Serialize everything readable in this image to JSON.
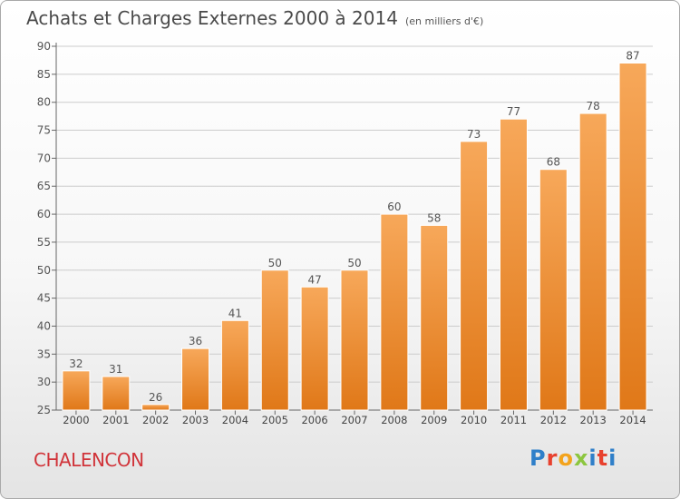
{
  "title": "Achats et Charges Externes 2000 à 2014",
  "unit": "(en milliers d'€)",
  "commune": "CHALENCON",
  "logo": {
    "text": "Proxiti"
  },
  "colors": {
    "bar_top": "#f7a85a",
    "bar_bottom": "#e07818",
    "grid": "#cccccc",
    "title": "#4a4a4a",
    "commune": "#d1343a"
  },
  "chart_data": {
    "type": "bar",
    "title": "Achats et Charges Externes 2000 à 2014",
    "subtitle": "(en milliers d'€)",
    "categories": [
      "2000",
      "2001",
      "2002",
      "2003",
      "2004",
      "2005",
      "2006",
      "2007",
      "2008",
      "2009",
      "2010",
      "2011",
      "2012",
      "2013",
      "2014"
    ],
    "values": [
      32,
      31,
      26,
      36,
      41,
      50,
      47,
      50,
      60,
      58,
      73,
      77,
      68,
      78,
      87
    ],
    "ylim": [
      25,
      90
    ],
    "yticks": [
      25,
      30,
      35,
      40,
      45,
      50,
      55,
      60,
      65,
      70,
      75,
      80,
      85,
      90
    ],
    "grid": true,
    "data_labels": true
  }
}
